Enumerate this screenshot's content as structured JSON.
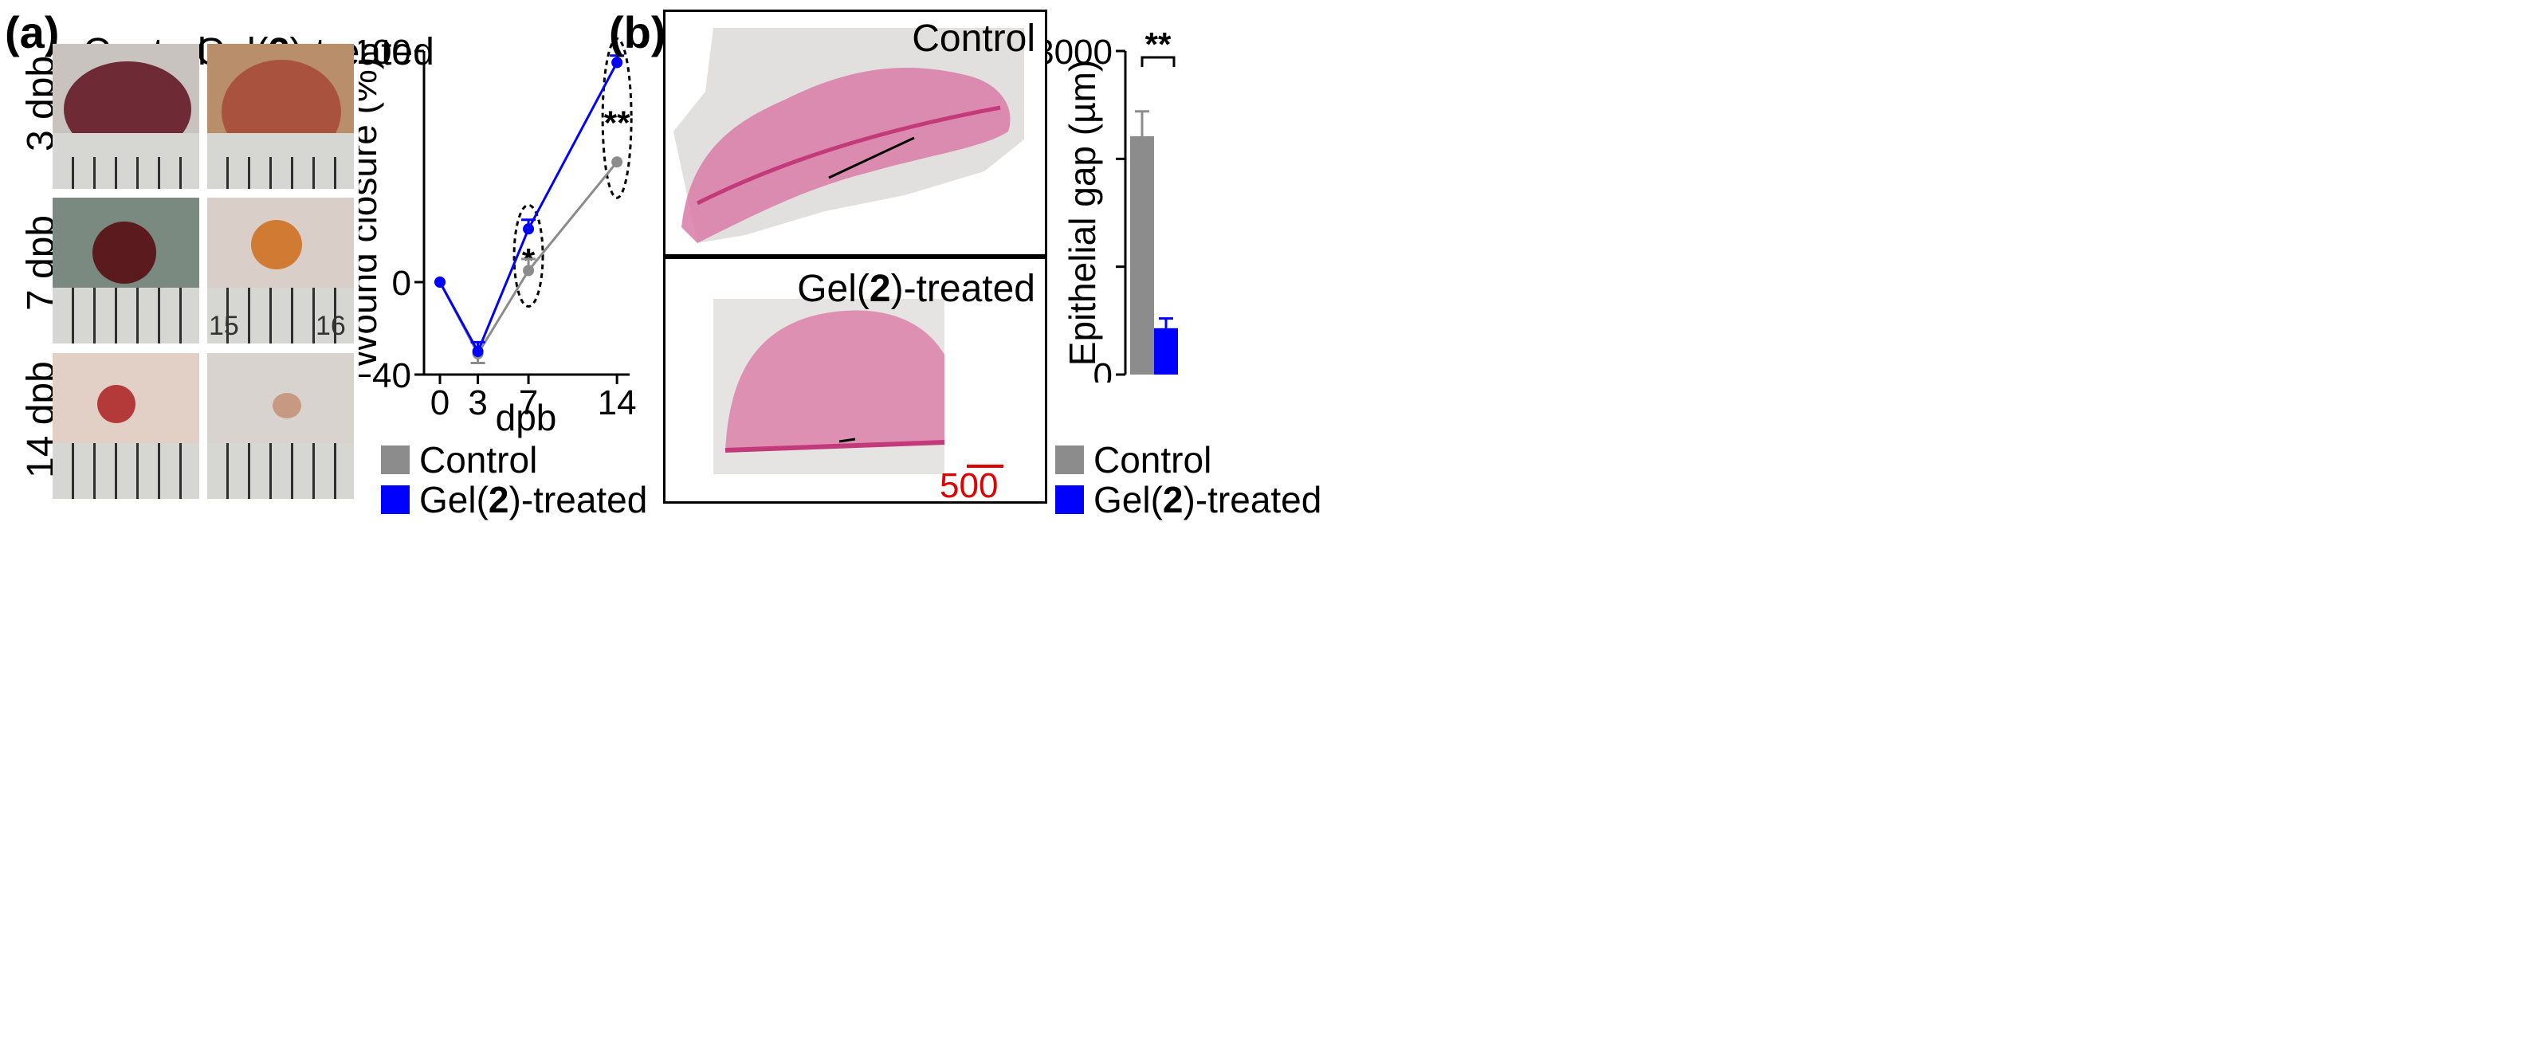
{
  "panel_a": {
    "letter": "(a)",
    "col_labels": {
      "control": "Control",
      "gel_prefix": "Gel(",
      "gel_bold": "2",
      "gel_suffix": ")-treated"
    },
    "row_labels": [
      "3 dpb",
      "7 dpb",
      "14 dpb"
    ],
    "ruler_numbers": [
      "15",
      "16"
    ]
  },
  "panel_b": {
    "letter": "(b)",
    "control_label": "Control",
    "gel_prefix": "Gel(",
    "gel_bold": "2",
    "gel_suffix": ")-treated",
    "scale_bar": "500 µm"
  },
  "legend": {
    "control": "Control",
    "gel_prefix": "Gel(",
    "gel_bold": "2",
    "gel_suffix": ")-treated"
  },
  "colors": {
    "control": "#8c8c8c",
    "gel": "#0000ff",
    "tissue": "#d4508a"
  },
  "chart_data": [
    {
      "type": "line",
      "title": "",
      "xlabel": "dpb",
      "ylabel": "Wound closure (%)",
      "x": [
        0,
        3,
        7,
        14
      ],
      "xticks": [
        "0",
        "3",
        "7",
        "14"
      ],
      "yticks": [
        "−40",
        "0",
        "100"
      ],
      "ylim": [
        -40,
        100
      ],
      "series": [
        {
          "name": "Control",
          "color": "#8c8c8c",
          "values": [
            0,
            -31,
            5,
            52
          ],
          "errors": [
            0,
            4,
            5,
            0
          ]
        },
        {
          "name": "Gel(2)-treated",
          "color": "#0000ff",
          "values": [
            0,
            -30,
            23,
            95
          ],
          "errors": [
            0,
            4,
            4,
            3
          ]
        }
      ],
      "annotations": [
        {
          "x": 7,
          "text": "*"
        },
        {
          "x": 14,
          "text": "**"
        }
      ]
    },
    {
      "type": "bar",
      "title": "",
      "xlabel": "",
      "ylabel": "Epithelial gap (µm)",
      "categories": [
        "Control",
        "Gel(2)-treated"
      ],
      "values": [
        2210,
        430
      ],
      "errors": [
        230,
        90
      ],
      "colors": [
        "#8c8c8c",
        "#0000ff"
      ],
      "yticks": [
        "0",
        "3000"
      ],
      "ylim": [
        0,
        3000
      ],
      "annotations": [
        {
          "text": "**"
        }
      ]
    }
  ]
}
